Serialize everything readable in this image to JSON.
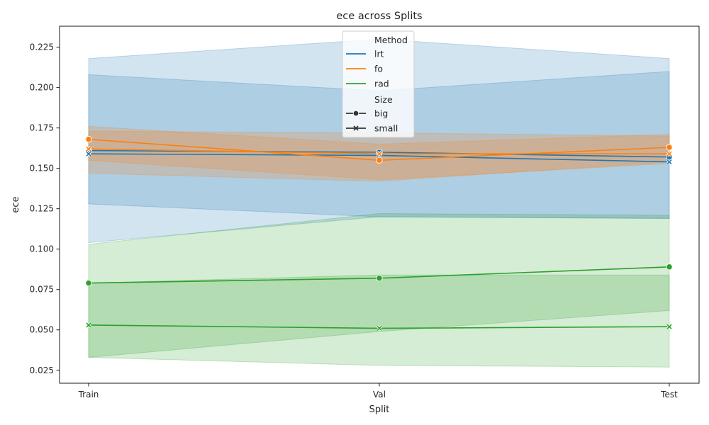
{
  "chart_data": {
    "type": "line",
    "title": "ece across Splits",
    "xlabel": "Split",
    "ylabel": "ece",
    "categories": [
      "Train",
      "Val",
      "Test"
    ],
    "ylim": [
      0.017,
      0.238
    ],
    "yticks": [
      0.025,
      0.05,
      0.075,
      0.1,
      0.125,
      0.15,
      0.175,
      0.2,
      0.225
    ],
    "ytick_labels": [
      "0.025",
      "0.050",
      "0.075",
      "0.100",
      "0.125",
      "0.150",
      "0.175",
      "0.200",
      "0.225"
    ],
    "grid": false,
    "legend_position": "top-center",
    "legend": {
      "method_title": "Method",
      "size_title": "Size",
      "methods": [
        {
          "name": "lrt",
          "color": "#1f77b4"
        },
        {
          "name": "fo",
          "color": "#ff7f0e"
        },
        {
          "name": "rad",
          "color": "#2ca02c"
        }
      ],
      "sizes": [
        {
          "name": "big",
          "marker": "circle"
        },
        {
          "name": "small",
          "marker": "x"
        }
      ]
    },
    "series": [
      {
        "method": "lrt",
        "size": "big",
        "marker": "circle",
        "color": "#1f77b4",
        "values": [
          0.161,
          0.16,
          0.157
        ],
        "ci_low": [
          0.128,
          0.12,
          0.119
        ],
        "ci_high": [
          0.218,
          0.23,
          0.218
        ]
      },
      {
        "method": "lrt",
        "size": "small",
        "marker": "x",
        "color": "#1f77b4",
        "values": [
          0.159,
          0.158,
          0.154
        ],
        "ci_low": [
          0.104,
          0.12,
          0.119
        ],
        "ci_high": [
          0.208,
          0.198,
          0.21
        ]
      },
      {
        "method": "fo",
        "size": "big",
        "marker": "circle",
        "color": "#ff7f0e",
        "values": [
          0.168,
          0.155,
          0.163
        ],
        "ci_low": [
          0.155,
          0.143,
          0.153
        ],
        "ci_high": [
          0.176,
          0.165,
          0.171
        ]
      },
      {
        "method": "fo",
        "size": "small",
        "marker": "x",
        "color": "#ff7f0e",
        "values": [
          0.162,
          0.159,
          0.159
        ],
        "ci_low": [
          0.147,
          0.142,
          0.154
        ],
        "ci_high": [
          0.173,
          0.172,
          0.17
        ]
      },
      {
        "method": "rad",
        "size": "big",
        "marker": "circle",
        "color": "#2ca02c",
        "values": [
          0.079,
          0.082,
          0.089
        ],
        "ci_low": [
          0.033,
          0.049,
          0.062
        ],
        "ci_high": [
          0.103,
          0.122,
          0.121
        ]
      },
      {
        "method": "rad",
        "size": "small",
        "marker": "x",
        "color": "#2ca02c",
        "values": [
          0.053,
          0.051,
          0.052
        ],
        "ci_low": [
          0.033,
          0.028,
          0.027
        ],
        "ci_high": [
          0.079,
          0.084,
          0.084
        ]
      }
    ]
  }
}
